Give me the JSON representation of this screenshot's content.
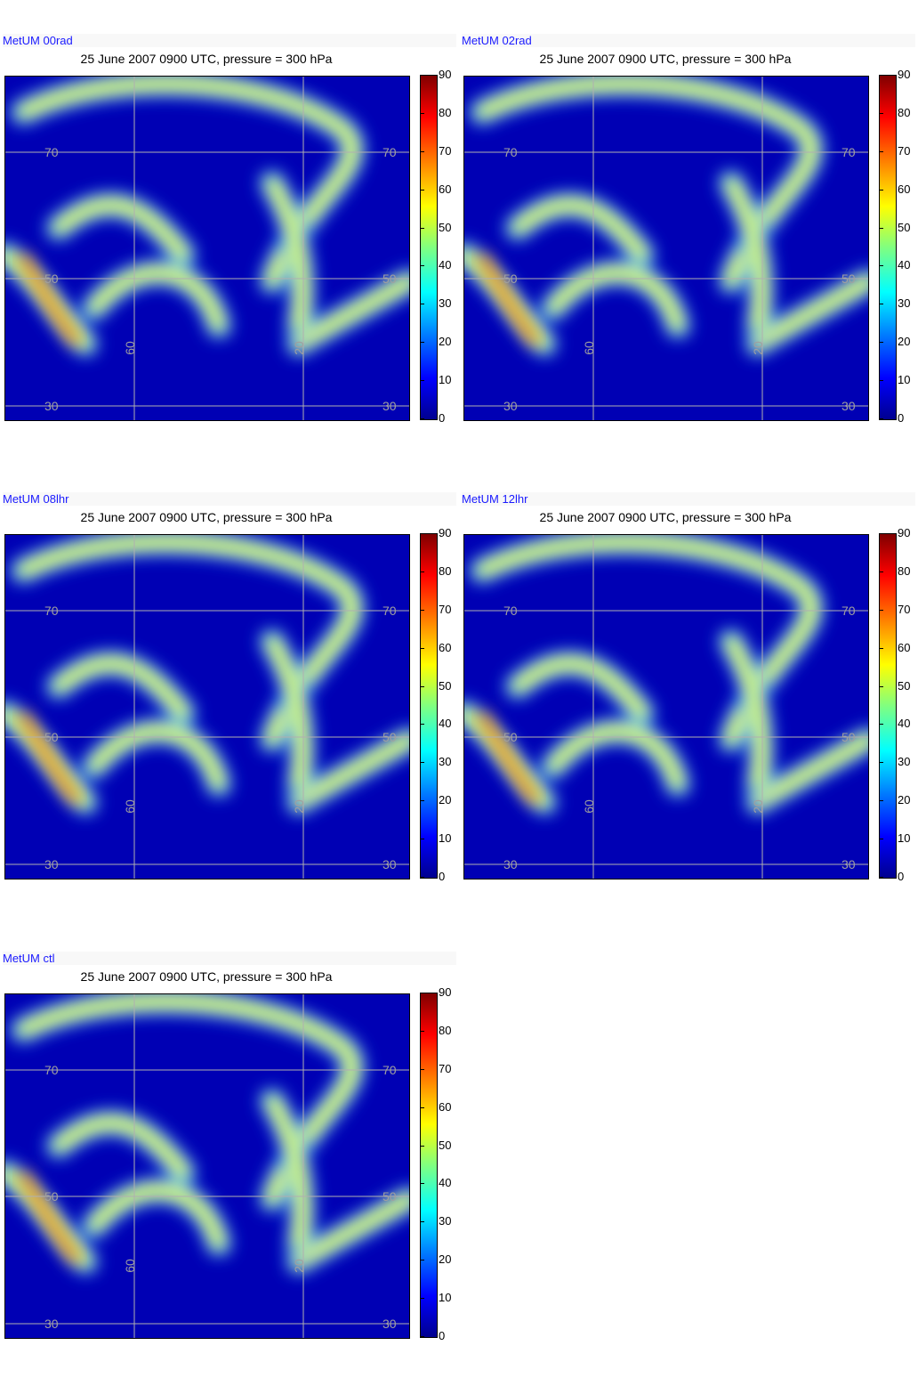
{
  "panels": [
    {
      "label": "MetUM 00rad",
      "title": "25 June 2007 0900 UTC, pressure = 300 hPa"
    },
    {
      "label": "MetUM 02rad",
      "title": "25 June 2007 0900 UTC, pressure = 300 hPa"
    },
    {
      "label": "MetUM 08lhr",
      "title": "25 June 2007 0900 UTC, pressure = 300 hPa"
    },
    {
      "label": "MetUM 12lhr",
      "title": "25 June 2007 0900 UTC, pressure = 300 hPa"
    },
    {
      "label": "MetUM ctl",
      "title": "25 June 2007 0900 UTC, pressure = 300 hPa"
    }
  ],
  "chart_data": [
    {
      "type": "heatmap",
      "panel": "MetUM 00rad",
      "title": "25 June 2007 0900 UTC, pressure = 300 hPa",
      "colorbar": {
        "min": 0,
        "max": 90,
        "ticks": [
          0,
          10,
          20,
          30,
          40,
          50,
          60,
          70,
          80,
          90
        ]
      },
      "grid_labels": {
        "lat": [
          "70",
          "50",
          "30"
        ],
        "lon": [
          "60",
          "20"
        ]
      }
    },
    {
      "type": "heatmap",
      "panel": "MetUM 02rad",
      "title": "25 June 2007 0900 UTC, pressure = 300 hPa",
      "colorbar": {
        "min": 0,
        "max": 90,
        "ticks": [
          0,
          10,
          20,
          30,
          40,
          50,
          60,
          70,
          80,
          90
        ]
      },
      "grid_labels": {
        "lat": [
          "70",
          "50",
          "30"
        ],
        "lon": [
          "60",
          "20"
        ]
      }
    },
    {
      "type": "heatmap",
      "panel": "MetUM 08lhr",
      "title": "25 June 2007 0900 UTC, pressure = 300 hPa",
      "colorbar": {
        "min": 0,
        "max": 90,
        "ticks": [
          0,
          10,
          20,
          30,
          40,
          50,
          60,
          70,
          80,
          90
        ]
      },
      "grid_labels": {
        "lat": [
          "70",
          "50",
          "30"
        ],
        "lon": [
          "60",
          "20"
        ]
      }
    },
    {
      "type": "heatmap",
      "panel": "MetUM 12lhr",
      "title": "25 June 2007 0900 UTC, pressure = 300 hPa",
      "colorbar": {
        "min": 0,
        "max": 90,
        "ticks": [
          0,
          10,
          20,
          30,
          40,
          50,
          60,
          70,
          80,
          90
        ]
      },
      "grid_labels": {
        "lat": [
          "70",
          "50",
          "30"
        ],
        "lon": [
          "60",
          "20"
        ]
      }
    },
    {
      "type": "heatmap",
      "panel": "MetUM ctl",
      "title": "25 June 2007 0900 UTC, pressure = 300 hPa",
      "colorbar": {
        "min": 0,
        "max": 90,
        "ticks": [
          0,
          10,
          20,
          30,
          40,
          50,
          60,
          70,
          80,
          90
        ]
      },
      "grid_labels": {
        "lat": [
          "70",
          "50",
          "30"
        ],
        "lon": [
          "60",
          "20"
        ]
      }
    }
  ]
}
